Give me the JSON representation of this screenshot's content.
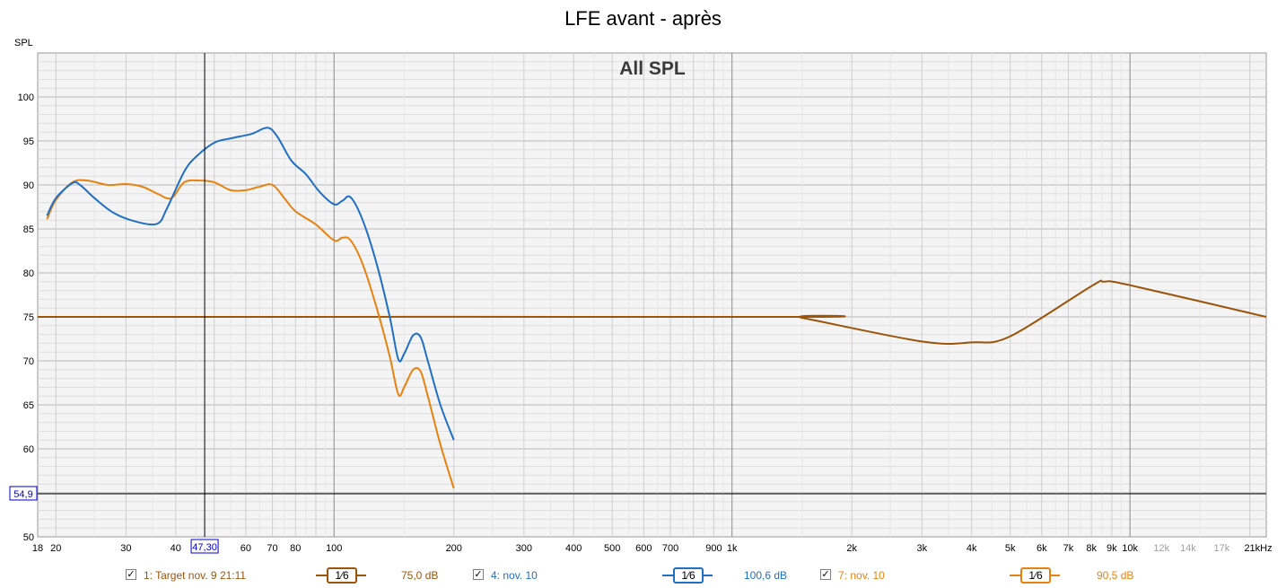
{
  "title": "LFE avant - après",
  "chart_data": {
    "type": "line",
    "title": "LFE avant - après",
    "subtitle": "All SPL",
    "ylabel": "SPL",
    "x_scale": "log",
    "xlim": [
      18,
      22000
    ],
    "ylim": [
      50,
      105
    ],
    "y_ticks": [
      50,
      55,
      60,
      65,
      70,
      75,
      80,
      85,
      90,
      95,
      100
    ],
    "x_ticks": [
      {
        "v": 18,
        "l": "18"
      },
      {
        "v": 20,
        "l": "20"
      },
      {
        "v": 30,
        "l": "30"
      },
      {
        "v": 40,
        "l": "40"
      },
      {
        "v": 60,
        "l": "60"
      },
      {
        "v": 70,
        "l": "70"
      },
      {
        "v": 80,
        "l": "80"
      },
      {
        "v": 100,
        "l": "100"
      },
      {
        "v": 200,
        "l": "200"
      },
      {
        "v": 300,
        "l": "300"
      },
      {
        "v": 400,
        "l": "400"
      },
      {
        "v": 500,
        "l": "500"
      },
      {
        "v": 600,
        "l": "600"
      },
      {
        "v": 700,
        "l": "700"
      },
      {
        "v": 900,
        "l": "900"
      },
      {
        "v": 1000,
        "l": "1k"
      },
      {
        "v": 2000,
        "l": "2k"
      },
      {
        "v": 3000,
        "l": "3k"
      },
      {
        "v": 4000,
        "l": "4k"
      },
      {
        "v": 5000,
        "l": "5k"
      },
      {
        "v": 6000,
        "l": "6k"
      },
      {
        "v": 7000,
        "l": "7k"
      },
      {
        "v": 8000,
        "l": "8k"
      },
      {
        "v": 9000,
        "l": "9k"
      },
      {
        "v": 10000,
        "l": "10k"
      },
      {
        "v": 12000,
        "l": "12k",
        "dim": true
      },
      {
        "v": 14000,
        "l": "14k",
        "dim": true
      },
      {
        "v": 17000,
        "l": "17k",
        "dim": true
      },
      {
        "v": 21000,
        "l": "21kHz"
      }
    ],
    "cursor": {
      "x": 47.3,
      "x_label": "47,30",
      "y": 54.9,
      "y_label": "54,9"
    },
    "grid": true,
    "colors": {
      "target": "#9b5409",
      "nov10_blue": "#1f6fc5",
      "nov10_orange": "#e8820f"
    },
    "series": [
      {
        "name": "1: Target nov. 9 21:11",
        "color": "#9b5409",
        "x": [
          18,
          1400,
          1500,
          3000,
          4000,
          5000,
          8000,
          8600,
          10000,
          22000
        ],
        "y": [
          75,
          75,
          74.9,
          72.2,
          72.1,
          72.8,
          78.5,
          79,
          78.6,
          75
        ]
      },
      {
        "name": "4: nov. 10",
        "color": "#1f6fc5",
        "x": [
          19,
          20,
          22,
          23,
          25,
          28,
          32,
          36,
          38,
          42,
          45,
          50,
          55,
          62,
          68,
          72,
          78,
          85,
          92,
          100,
          105,
          110,
          118,
          128,
          138,
          145,
          150,
          158,
          165,
          172,
          185,
          200
        ],
        "y": [
          86.5,
          88.5,
          90.2,
          90,
          88.5,
          86.8,
          85.8,
          85.6,
          87.3,
          91.5,
          93.2,
          94.8,
          95.3,
          95.8,
          96.5,
          95.5,
          92.8,
          91.2,
          89.2,
          87.8,
          88.2,
          88.6,
          86,
          81,
          75,
          70.2,
          70.8,
          72.9,
          72.7,
          70,
          65,
          61
        ]
      },
      {
        "name": "7: nov. 10",
        "color": "#e8820f",
        "x": [
          19,
          20,
          22,
          24,
          27,
          30,
          33,
          36,
          39,
          42,
          46,
          50,
          55,
          60,
          65,
          70,
          75,
          80,
          90,
          100,
          105,
          110,
          118,
          128,
          138,
          145,
          150,
          158,
          165,
          172,
          185,
          200
        ],
        "y": [
          86.1,
          88.3,
          90.3,
          90.5,
          90,
          90.1,
          89.8,
          89,
          88.5,
          90.3,
          90.5,
          90.3,
          89.4,
          89.4,
          89.8,
          90,
          88.5,
          87,
          85.5,
          83.7,
          84,
          83.7,
          81,
          76,
          70.5,
          66.2,
          67,
          69,
          68.8,
          66,
          60.5,
          55.5
        ]
      }
    ],
    "legend": [
      {
        "check": "✓",
        "name": "1: Target nov. 9 21:11",
        "smoothing": "1⁄6",
        "value": "75,0 dB",
        "color": "#9b5409"
      },
      {
        "check": "✓",
        "name": "4: nov. 10",
        "smoothing": "1⁄6",
        "value": "100,6 dB",
        "color": "#1f6fc5"
      },
      {
        "check": "✓",
        "name": "7: nov. 10",
        "smoothing": "1⁄6",
        "value": "90,5 dB",
        "color": "#e8820f"
      }
    ]
  }
}
